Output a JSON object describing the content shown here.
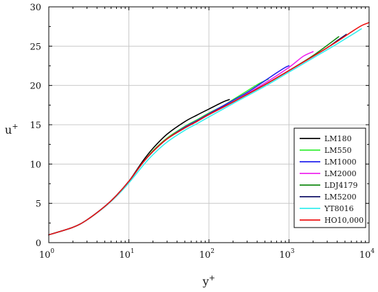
{
  "chart_data": {
    "type": "line",
    "title": "",
    "xlabel": "y",
    "xlabel_sup": "+",
    "ylabel": "u",
    "ylabel_sup": "+",
    "xscale": "log",
    "xlim": [
      1,
      10000
    ],
    "ylim": [
      0,
      30
    ],
    "grid": true,
    "legend_position": "lower-right",
    "x_ticks": [
      {
        "value": 1,
        "base": "10",
        "exp": "0"
      },
      {
        "value": 10,
        "base": "10",
        "exp": "1"
      },
      {
        "value": 100,
        "base": "10",
        "exp": "2"
      },
      {
        "value": 1000,
        "base": "10",
        "exp": "3"
      },
      {
        "value": 10000,
        "base": "10",
        "exp": "4"
      }
    ],
    "y_ticks": [
      {
        "value": 0,
        "label": "0"
      },
      {
        "value": 5,
        "label": "5"
      },
      {
        "value": 10,
        "label": "10"
      },
      {
        "value": 15,
        "label": "15"
      },
      {
        "value": 20,
        "label": "20"
      },
      {
        "value": 25,
        "label": "25"
      },
      {
        "value": 30,
        "label": "30"
      }
    ],
    "series": [
      {
        "name": "LM180",
        "color": "#000000",
        "x": [
          1,
          2,
          3,
          5,
          7,
          10,
          15,
          20,
          30,
          50,
          70,
          100,
          150,
          180
        ],
        "y": [
          1.0,
          1.95,
          2.9,
          4.6,
          6.0,
          7.8,
          10.4,
          12.0,
          13.8,
          15.4,
          16.2,
          17.0,
          17.9,
          18.2
        ]
      },
      {
        "name": "LM550",
        "color": "#33ee33",
        "x": [
          1,
          2,
          3,
          5,
          7,
          10,
          15,
          20,
          30,
          50,
          70,
          100,
          150,
          200,
          300,
          400,
          500,
          550
        ],
        "y": [
          1.0,
          1.95,
          2.9,
          4.6,
          6.0,
          7.8,
          10.2,
          11.7,
          13.3,
          14.8,
          15.6,
          16.5,
          17.4,
          18.2,
          19.3,
          20.1,
          20.6,
          20.8
        ]
      },
      {
        "name": "LM1000",
        "color": "#1f1fee",
        "x": [
          1,
          2,
          3,
          5,
          7,
          10,
          15,
          20,
          30,
          50,
          70,
          100,
          200,
          300,
          500,
          700,
          900,
          1000
        ],
        "y": [
          1.0,
          1.95,
          2.9,
          4.6,
          6.0,
          7.8,
          10.2,
          11.6,
          13.2,
          14.7,
          15.5,
          16.4,
          18.1,
          19.1,
          20.6,
          21.6,
          22.3,
          22.5
        ]
      },
      {
        "name": "LM2000",
        "color": "#ee22ee",
        "x": [
          1,
          2,
          3,
          5,
          7,
          10,
          15,
          20,
          30,
          50,
          70,
          100,
          200,
          500,
          1000,
          1500,
          2000
        ],
        "y": [
          1.0,
          1.95,
          2.9,
          4.6,
          6.0,
          7.8,
          10.2,
          11.6,
          13.2,
          14.6,
          15.4,
          16.3,
          17.9,
          20.3,
          22.3,
          23.7,
          24.3
        ]
      },
      {
        "name": "LDJ4179",
        "color": "#118811",
        "x": [
          1,
          2,
          3,
          5,
          7,
          10,
          15,
          20,
          30,
          50,
          70,
          100,
          200,
          500,
          1000,
          2000,
          4179
        ],
        "y": [
          1.0,
          1.95,
          2.9,
          4.6,
          6.0,
          7.8,
          10.2,
          11.6,
          13.2,
          14.6,
          15.4,
          16.3,
          17.9,
          20.1,
          21.9,
          23.8,
          26.2
        ]
      },
      {
        "name": "LM5200",
        "color": "#111166",
        "x": [
          1,
          2,
          3,
          5,
          7,
          10,
          15,
          20,
          30,
          50,
          70,
          100,
          200,
          500,
          1000,
          2000,
          3000,
          4000,
          5200
        ],
        "y": [
          1.0,
          1.95,
          2.9,
          4.6,
          6.0,
          7.8,
          10.2,
          11.6,
          13.2,
          14.6,
          15.4,
          16.3,
          17.9,
          20.1,
          21.9,
          23.7,
          24.8,
          25.7,
          26.5
        ]
      },
      {
        "name": "YT8016",
        "color": "#33eeee",
        "x": [
          1,
          2,
          3,
          5,
          7,
          10,
          15,
          20,
          30,
          50,
          70,
          100,
          200,
          500,
          1000,
          2000,
          4000,
          8016
        ],
        "y": [
          1.0,
          1.95,
          2.9,
          4.55,
          5.9,
          7.6,
          9.8,
          11.2,
          12.8,
          14.3,
          15.1,
          16.0,
          17.7,
          19.9,
          21.7,
          23.5,
          25.3,
          27.2
        ]
      },
      {
        "name": "HO10,000",
        "color": "#ee1111",
        "x": [
          1,
          2,
          3,
          5,
          7,
          10,
          15,
          20,
          30,
          50,
          70,
          100,
          200,
          500,
          1000,
          2000,
          4000,
          6000,
          8000,
          10000
        ],
        "y": [
          1.0,
          1.95,
          2.9,
          4.6,
          6.0,
          7.8,
          10.2,
          11.6,
          13.2,
          14.6,
          15.4,
          16.3,
          17.9,
          20.1,
          21.9,
          23.7,
          25.6,
          26.8,
          27.6,
          28.0
        ]
      }
    ]
  }
}
